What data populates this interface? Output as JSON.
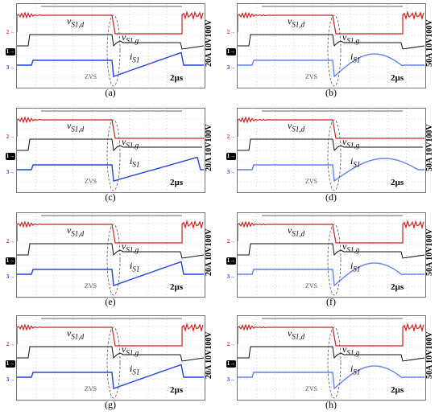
{
  "panels": [
    {
      "caption": "(a)",
      "scale": "20A 10V100V",
      "v_sd": "v",
      "v_sd_sub": "S1,d",
      "v_sg": "v",
      "v_sg_sub": "S1,g",
      "i_s": "i",
      "i_s_sub": "S1",
      "zvs": "ZVS",
      "time_div": "2µs",
      "current_color": "#2244dd"
    },
    {
      "caption": "(b)",
      "scale": "50A 10V100V",
      "v_sd": "v",
      "v_sd_sub": "S1,d",
      "v_sg": "v",
      "v_sg_sub": "S1,g",
      "i_s": "i",
      "i_s_sub": "S1",
      "zvs": "ZVS",
      "time_div": "2µs",
      "current_color": "#6680ee"
    },
    {
      "caption": "(c)",
      "scale": "20A 10V100V",
      "v_sd": "v",
      "v_sd_sub": "S1,d",
      "v_sg": "v",
      "v_sg_sub": "S1,g",
      "i_s": "i",
      "i_s_sub": "S1",
      "zvs": "ZVS",
      "time_div": "2µs",
      "current_color": "#2244dd"
    },
    {
      "caption": "(d)",
      "scale": "50A 10V100V",
      "v_sd": "v",
      "v_sd_sub": "S1,d",
      "v_sg": "v",
      "v_sg_sub": "S1,g",
      "i_s": "i",
      "i_s_sub": "S1",
      "zvs": "ZVS",
      "time_div": "2µs",
      "current_color": "#6680ee"
    },
    {
      "caption": "(e)",
      "scale": "20A 10V100V",
      "v_sd": "v",
      "v_sd_sub": "S1,d",
      "v_sg": "v",
      "v_sg_sub": "S1,g",
      "i_s": "i",
      "i_s_sub": "S1",
      "zvs": "ZVS",
      "time_div": "2µs",
      "current_color": "#2244dd"
    },
    {
      "caption": "(f)",
      "scale": "50A 10V100V",
      "v_sd": "v",
      "v_sd_sub": "S1,d",
      "v_sg": "v",
      "v_sg_sub": "S1,g",
      "i_s": "i",
      "i_s_sub": "S1",
      "zvs": "ZVS",
      "time_div": "2µs",
      "current_color": "#6680ee"
    },
    {
      "caption": "(g)",
      "scale": "20A 10V100V",
      "v_sd": "v",
      "v_sd_sub": "S1,d",
      "v_sg": "v",
      "v_sg_sub": "S1,g",
      "i_s": "i",
      "i_s_sub": "S1",
      "zvs": "ZVS",
      "time_div": "2µs",
      "current_color": "#2244dd"
    },
    {
      "caption": "(h)",
      "scale": "50A 10V100V",
      "v_sd": "v",
      "v_sd_sub": "S1,d",
      "v_sg": "v",
      "v_sg_sub": "S1,g",
      "i_s": "i",
      "i_s_sub": "S1",
      "zvs": "ZVS",
      "time_div": "2µs",
      "current_color": "#6680ee"
    }
  ],
  "channel_markers": [
    "2",
    "1",
    "3"
  ],
  "colors": {
    "drain_voltage": "#cc2222",
    "gate_voltage": "#111111",
    "grid": "#bbbbbb",
    "zvs_ellipse": "#555555"
  }
}
